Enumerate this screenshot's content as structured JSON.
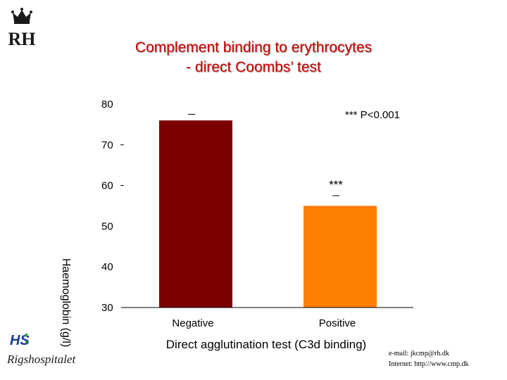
{
  "header": {
    "title_line1": "Complement binding to erythrocytes",
    "title_line2": "- direct Coombs’ test"
  },
  "logos": {
    "top_left": "RH",
    "bottom_left_mark": "HS",
    "bottom_left_name": "Rigshospitalet"
  },
  "footer": {
    "email": "e-mail: jkcmp@rh.dk",
    "internet": "Internet: http://www.cmp.dk"
  },
  "colors": {
    "title": "#cc0000",
    "negative_bar": "#7b0000",
    "positive_bar": "#ff7f00"
  },
  "chart_data": {
    "type": "bar",
    "title": "",
    "xlabel": "Direct agglutination test (C3d binding)",
    "ylabel": "Haemoglobin (g/l)",
    "ylim": [
      30,
      80
    ],
    "yticks": [
      30,
      40,
      50,
      60,
      70,
      80
    ],
    "categories": [
      "Negative",
      "Positive"
    ],
    "values": [
      76,
      55
    ],
    "error_caps": [
      77.5,
      57.5
    ],
    "bar_annotations": [
      "",
      "***"
    ],
    "legend_note": "*** P<0.001",
    "grid": false
  }
}
